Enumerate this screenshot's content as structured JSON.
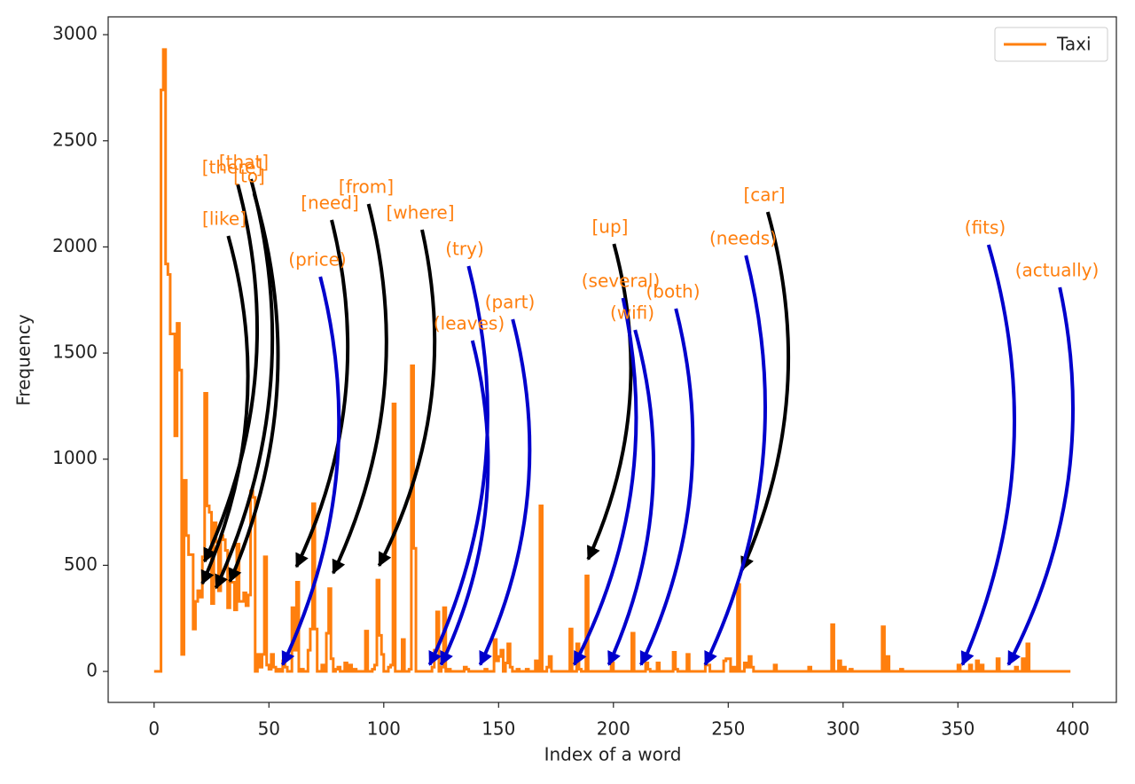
{
  "chart_data": {
    "type": "line",
    "drawstyle": "steps",
    "x_label": "Index of a word",
    "y_label": "Frequency",
    "xlim": [
      -20,
      419
    ],
    "ylim": [
      -146,
      3084
    ],
    "xticks": [
      0,
      50,
      100,
      150,
      200,
      250,
      300,
      350,
      400
    ],
    "yticks": [
      0,
      500,
      1000,
      1500,
      2000,
      2500,
      3000
    ],
    "legend": "upper right",
    "series": [
      {
        "name": "Taxi",
        "color": "#ff7f0e",
        "values": [
          0,
          0,
          0,
          2740,
          2930,
          1920,
          1870,
          1590,
          1590,
          1110,
          1640,
          1420,
          80,
          900,
          640,
          550,
          550,
          200,
          330,
          380,
          350,
          540,
          1310,
          780,
          750,
          320,
          700,
          610,
          380,
          640,
          620,
          570,
          300,
          420,
          420,
          290,
          600,
          330,
          330,
          370,
          310,
          360,
          850,
          820,
          0,
          80,
          20,
          80,
          540,
          30,
          10,
          80,
          20,
          0,
          10,
          0,
          50,
          20,
          0,
          0,
          300,
          100,
          420,
          0,
          10,
          0,
          0,
          100,
          200,
          790,
          200,
          0,
          0,
          30,
          0,
          180,
          390,
          60,
          0,
          10,
          20,
          0,
          0,
          40,
          0,
          30,
          0,
          10,
          0,
          0,
          0,
          0,
          190,
          0,
          0,
          10,
          30,
          430,
          170,
          80,
          0,
          0,
          20,
          30,
          1260,
          0,
          0,
          0,
          150,
          0,
          0,
          10,
          1440,
          580,
          0,
          0,
          0,
          0,
          0,
          0,
          0,
          20,
          100,
          280,
          0,
          20,
          300,
          0,
          10,
          0,
          0,
          0,
          0,
          0,
          0,
          20,
          10,
          0,
          0,
          0,
          0,
          0,
          0,
          0,
          10,
          0,
          0,
          0,
          150,
          50,
          70,
          100,
          0,
          40,
          130,
          20,
          0,
          0,
          10,
          0,
          0,
          0,
          10,
          0,
          0,
          0,
          50,
          0,
          780,
          0,
          0,
          20,
          70,
          0,
          0,
          0,
          0,
          0,
          0,
          0,
          0,
          200,
          0,
          0,
          130,
          10,
          0,
          0,
          450,
          0,
          0,
          0,
          0,
          0,
          0,
          0,
          0,
          0,
          0,
          40,
          0,
          0,
          0,
          0,
          0,
          0,
          0,
          0,
          180,
          0,
          0,
          0,
          0,
          0,
          40,
          10,
          0,
          0,
          0,
          40,
          0,
          0,
          0,
          0,
          0,
          0,
          90,
          10,
          0,
          0,
          0,
          0,
          80,
          0,
          0,
          0,
          0,
          0,
          0,
          0,
          30,
          30,
          0,
          0,
          0,
          0,
          0,
          0,
          50,
          60,
          60,
          0,
          20,
          0,
          410,
          0,
          0,
          40,
          20,
          70,
          20,
          0,
          0,
          0,
          0,
          0,
          0,
          0,
          0,
          0,
          30,
          0,
          0,
          0,
          0,
          0,
          0,
          0,
          0,
          0,
          0,
          0,
          0,
          0,
          0,
          20,
          0,
          0,
          0,
          0,
          0,
          0,
          0,
          0,
          0,
          220,
          0,
          0,
          50,
          0,
          20,
          0,
          0,
          10,
          0,
          0,
          0,
          0,
          0,
          0,
          0,
          0,
          0,
          0,
          0,
          0,
          0,
          210,
          0,
          70,
          0,
          0,
          0,
          0,
          0,
          10,
          0,
          0,
          0,
          0,
          0,
          0,
          0,
          0,
          0,
          0,
          0,
          0,
          0,
          0,
          0,
          0,
          0,
          0,
          0,
          0,
          0,
          0,
          0,
          0,
          30,
          0,
          0,
          0,
          0,
          30,
          0,
          0,
          50,
          0,
          30,
          0,
          0,
          0,
          0,
          0,
          0,
          60,
          0,
          0,
          0,
          0,
          0,
          0,
          0,
          20,
          0,
          0,
          60,
          0,
          130,
          0,
          0,
          0,
          0,
          0,
          0,
          0,
          0,
          0,
          0,
          0,
          0,
          0,
          0,
          0,
          0,
          0,
          0,
          0
        ]
      }
    ],
    "annotations": [
      {
        "text": "[like]",
        "x": 21,
        "y": 355,
        "arrow_color": "#000000"
      },
      {
        "text": "[there]",
        "x": 22,
        "y": 460,
        "arrow_color": "#000000"
      },
      {
        "text": "[that]",
        "x": 27,
        "y": 335,
        "arrow_color": "#000000"
      },
      {
        "text": "[to]",
        "x": 33,
        "y": 365,
        "arrow_color": "#000000"
      },
      {
        "text": "[need]",
        "x": 62,
        "y": 435,
        "arrow_color": "#000000"
      },
      {
        "text": "[from]",
        "x": 78,
        "y": 405,
        "arrow_color": "#000000"
      },
      {
        "text": "[where]",
        "x": 98,
        "y": 440,
        "arrow_color": "#000000"
      },
      {
        "text": "[up]",
        "x": 189,
        "y": 470,
        "arrow_color": "#000000"
      },
      {
        "text": "[car]",
        "x": 256,
        "y": 420,
        "arrow_color": "#000000"
      },
      {
        "text": "(price)",
        "x": 56,
        "y": 15,
        "arrow_color": "#0000cc"
      },
      {
        "text": "(try)",
        "x": 120,
        "y": 15,
        "arrow_color": "#0000cc"
      },
      {
        "text": "(leaves)",
        "x": 125,
        "y": 15,
        "arrow_color": "#0000cc"
      },
      {
        "text": "(part)",
        "x": 142,
        "y": 15,
        "arrow_color": "#0000cc"
      },
      {
        "text": "(several)",
        "x": 183,
        "y": 15,
        "arrow_color": "#0000cc"
      },
      {
        "text": "(wifi)",
        "x": 198,
        "y": 15,
        "arrow_color": "#0000cc"
      },
      {
        "text": "(both)",
        "x": 212,
        "y": 15,
        "arrow_color": "#0000cc"
      },
      {
        "text": "(needs)",
        "x": 240,
        "y": 15,
        "arrow_color": "#0000cc"
      },
      {
        "text": "(fits)",
        "x": 352,
        "y": 15,
        "arrow_color": "#0000cc"
      },
      {
        "text": "(actually)",
        "x": 372,
        "y": 15,
        "arrow_color": "#0000cc"
      }
    ]
  }
}
